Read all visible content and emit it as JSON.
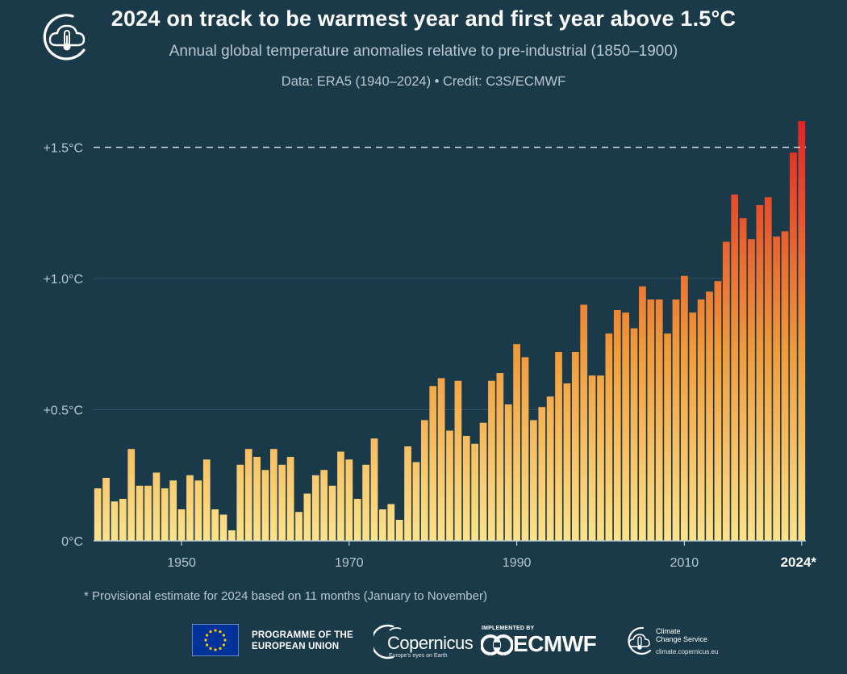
{
  "header": {
    "title": "2024 on track to be warmest year and first year above 1.5°C",
    "subtitle": "Annual global temperature anomalies relative to pre-industrial (1850–1900)",
    "credit": "Data: ERA5 (1940–2024) • Credit: C3S/ECMWF",
    "icon": "cloud-thermometer-icon"
  },
  "footnote": "* Provisional estimate for 2024 based on 11 months (January to November)",
  "logos": {
    "eu_text_line1": "PROGRAMME OF THE",
    "eu_text_line2": "EUROPEAN UNION",
    "copernicus_name": "Copernicus",
    "copernicus_tagline": "Europe's eyes on Earth",
    "ecmwf_top": "IMPLEMENTED BY",
    "ecmwf_name": "ECMWF",
    "c3s_line1": "Climate",
    "c3s_line2": "Change Service",
    "c3s_url": "climate.copernicus.eu"
  },
  "chart_data": {
    "type": "bar",
    "title": "2024 on track to be warmest year and first year above 1.5°C",
    "xlabel": "",
    "ylabel": "",
    "ylim": [
      0,
      1.6
    ],
    "xlim": [
      1940,
      2024
    ],
    "grid": true,
    "legend": "none",
    "reference_line": {
      "value": 1.5,
      "style": "dashed"
    },
    "y_ticks": [
      {
        "value": 0,
        "label": "0°C"
      },
      {
        "value": 0.5,
        "label": "+0.5°C"
      },
      {
        "value": 1.0,
        "label": "+1.0°C"
      },
      {
        "value": 1.5,
        "label": "+1.5°C"
      }
    ],
    "x_ticks": [
      {
        "value": 1950,
        "label": "1950"
      },
      {
        "value": 1970,
        "label": "1970"
      },
      {
        "value": 1990,
        "label": "1990"
      },
      {
        "value": 2010,
        "label": "2010"
      },
      {
        "value": 2024,
        "label": "2024*"
      }
    ],
    "color_scale": {
      "low": "#fde28a",
      "mid": "#f29b3a",
      "high": "#e02424"
    },
    "x": [
      1940,
      1941,
      1942,
      1943,
      1944,
      1945,
      1946,
      1947,
      1948,
      1949,
      1950,
      1951,
      1952,
      1953,
      1954,
      1955,
      1956,
      1957,
      1958,
      1959,
      1960,
      1961,
      1962,
      1963,
      1964,
      1965,
      1966,
      1967,
      1968,
      1969,
      1970,
      1971,
      1972,
      1973,
      1974,
      1975,
      1976,
      1977,
      1978,
      1979,
      1980,
      1981,
      1982,
      1983,
      1984,
      1985,
      1986,
      1987,
      1988,
      1989,
      1990,
      1991,
      1992,
      1993,
      1994,
      1995,
      1996,
      1997,
      1998,
      1999,
      2000,
      2001,
      2002,
      2003,
      2004,
      2005,
      2006,
      2007,
      2008,
      2009,
      2010,
      2011,
      2012,
      2013,
      2014,
      2015,
      2016,
      2017,
      2018,
      2019,
      2020,
      2021,
      2022,
      2023,
      2024
    ],
    "values": [
      0.2,
      0.24,
      0.15,
      0.16,
      0.35,
      0.21,
      0.21,
      0.26,
      0.2,
      0.23,
      0.12,
      0.25,
      0.23,
      0.31,
      0.12,
      0.1,
      0.04,
      0.29,
      0.35,
      0.32,
      0.27,
      0.35,
      0.29,
      0.32,
      0.11,
      0.18,
      0.25,
      0.27,
      0.21,
      0.34,
      0.31,
      0.16,
      0.29,
      0.39,
      0.12,
      0.14,
      0.08,
      0.36,
      0.3,
      0.46,
      0.59,
      0.62,
      0.42,
      0.61,
      0.4,
      0.37,
      0.45,
      0.61,
      0.64,
      0.52,
      0.75,
      0.7,
      0.46,
      0.51,
      0.55,
      0.72,
      0.6,
      0.72,
      0.9,
      0.63,
      0.63,
      0.79,
      0.88,
      0.87,
      0.81,
      0.97,
      0.92,
      0.92,
      0.79,
      0.92,
      1.01,
      0.87,
      0.92,
      0.95,
      0.99,
      1.14,
      1.32,
      1.23,
      1.15,
      1.28,
      1.31,
      1.16,
      1.18,
      1.48,
      1.6
    ]
  }
}
